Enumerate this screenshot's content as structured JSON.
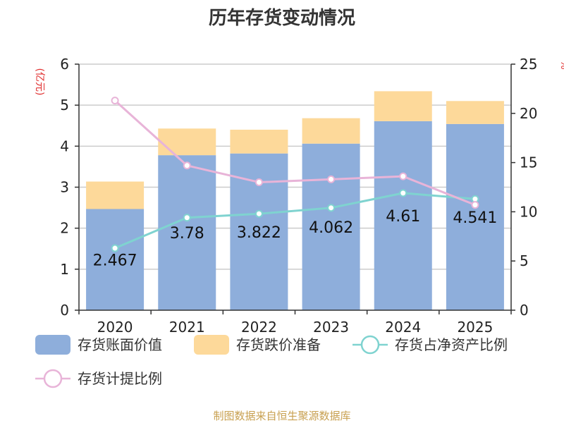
{
  "chart_data": {
    "type": "bar",
    "title": "历年存货变动情况",
    "left_axis_unit": "(亿元)",
    "right_axis_unit": "%",
    "categories": [
      "2020",
      "2021",
      "2022",
      "2023",
      "2024",
      "2025"
    ],
    "left_ylim": [
      0,
      6
    ],
    "left_ticks": [
      "0",
      "1",
      "2",
      "3",
      "4",
      "5",
      "6"
    ],
    "right_ylim": [
      0,
      25
    ],
    "right_ticks": [
      "0",
      "5",
      "10",
      "15",
      "20",
      "25"
    ],
    "grid": true,
    "legend_position": "bottom",
    "series": [
      {
        "name": "存货账面价值",
        "kind": "bar",
        "axis": "left",
        "color": "#8eaedb",
        "values": [
          2.467,
          3.78,
          3.822,
          4.062,
          4.61,
          4.541
        ],
        "labels": [
          "2.467",
          "3.78",
          "3.822",
          "4.062",
          "4.61",
          "4.541"
        ]
      },
      {
        "name": "存货跌价准备",
        "kind": "bar-stacked",
        "axis": "left",
        "color": "#fdd99a",
        "values": [
          0.67,
          0.65,
          0.58,
          0.62,
          0.73,
          0.56
        ]
      },
      {
        "name": "存货占净资产比例",
        "kind": "line",
        "axis": "right",
        "color": "#7fd3d0",
        "values": [
          6.3,
          9.4,
          9.8,
          10.4,
          11.9,
          11.3
        ]
      },
      {
        "name": "存货计提比例",
        "kind": "line",
        "axis": "right",
        "color": "#e8b4d8",
        "values": [
          21.3,
          14.7,
          13.0,
          13.3,
          13.6,
          10.7
        ]
      }
    ],
    "colors": {
      "unit_text": "#e03030",
      "axis": "#333333",
      "grid": "#cccccc",
      "footer_text": "#c8a050"
    },
    "footer": "制图数据来自恒生聚源数据库"
  }
}
